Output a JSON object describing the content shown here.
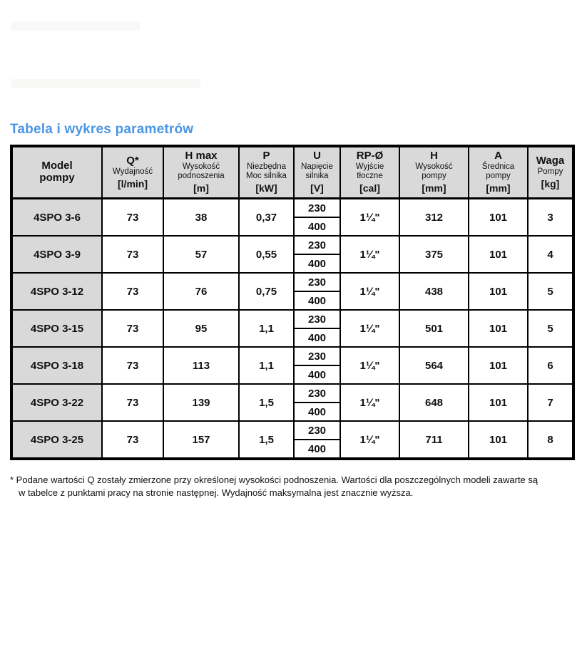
{
  "page": {
    "title": "Tabela i wykres parametrów",
    "footnote_line1": "* Podane wartości Q zostały zmierzone przy określonej wysokości podnoszenia. Wartości dla poszczególnych modeli zawarte są",
    "footnote_line2": "w tabelce z punktami pracy na stronie następnej. Wydajność maksymalna jest znacznie wyższa."
  },
  "colors": {
    "accent": "#4a96e4",
    "header_bg": "#d9d9d9",
    "border": "#000000"
  },
  "table": {
    "columns": [
      {
        "key": "model",
        "main": "Model\npompy",
        "sub": "",
        "unit": ""
      },
      {
        "key": "q",
        "main": "Q*",
        "sub": "Wydajność",
        "unit": "[l/min]"
      },
      {
        "key": "hmax",
        "main": "H max",
        "sub": "Wysokość\npodnoszenia",
        "unit": "[m]"
      },
      {
        "key": "p",
        "main": "P",
        "sub": "Niezbędna\nMoc silnika",
        "unit": "[kW]"
      },
      {
        "key": "u",
        "main": "U",
        "sub": "Napięcie\nsilnika",
        "unit": "[V]"
      },
      {
        "key": "rp",
        "main": "RP-Ø",
        "sub": "Wyjście\ntłoczne",
        "unit": "[cal]"
      },
      {
        "key": "h",
        "main": "H",
        "sub": "Wysokość\npompy",
        "unit": "[mm]"
      },
      {
        "key": "a",
        "main": "A",
        "sub": "Średnica\npompy",
        "unit": "[mm]"
      },
      {
        "key": "waga",
        "main": "Waga",
        "sub": "Pompy",
        "unit": "[kg]"
      }
    ],
    "rows": [
      {
        "model": "4SPO 3-6",
        "q": "73",
        "hmax": "38",
        "p": "0,37",
        "u": [
          "230",
          "400"
        ],
        "rp": "1¼\"",
        "h": "312",
        "a": "101",
        "waga": "3"
      },
      {
        "model": "4SPO 3-9",
        "q": "73",
        "hmax": "57",
        "p": "0,55",
        "u": [
          "230",
          "400"
        ],
        "rp": "1¼\"",
        "h": "375",
        "a": "101",
        "waga": "4"
      },
      {
        "model": "4SPO 3-12",
        "q": "73",
        "hmax": "76",
        "p": "0,75",
        "u": [
          "230",
          "400"
        ],
        "rp": "1¼\"",
        "h": "438",
        "a": "101",
        "waga": "5"
      },
      {
        "model": "4SPO 3-15",
        "q": "73",
        "hmax": "95",
        "p": "1,1",
        "u": [
          "230",
          "400"
        ],
        "rp": "1¼\"",
        "h": "501",
        "a": "101",
        "waga": "5"
      },
      {
        "model": "4SPO 3-18",
        "q": "73",
        "hmax": "113",
        "p": "1,1",
        "u": [
          "230",
          "400"
        ],
        "rp": "1¼\"",
        "h": "564",
        "a": "101",
        "waga": "6"
      },
      {
        "model": "4SPO 3-22",
        "q": "73",
        "hmax": "139",
        "p": "1,5",
        "u": [
          "230",
          "400"
        ],
        "rp": "1¼\"",
        "h": "648",
        "a": "101",
        "waga": "7"
      },
      {
        "model": "4SPO 3-25",
        "q": "73",
        "hmax": "157",
        "p": "1,5",
        "u": [
          "230",
          "400"
        ],
        "rp": "1¼\"",
        "h": "711",
        "a": "101",
        "waga": "8"
      }
    ]
  }
}
